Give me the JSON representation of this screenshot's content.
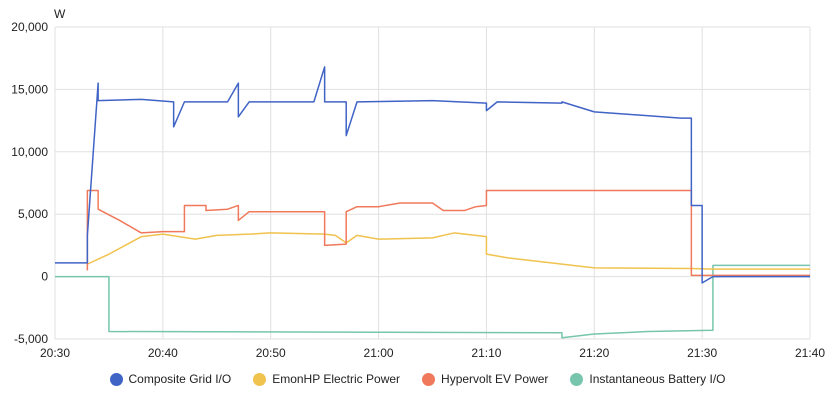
{
  "chart_data": {
    "type": "line",
    "y_label": "W",
    "xlim": [
      "20:30",
      "21:40"
    ],
    "xticks": [
      "20:30",
      "20:40",
      "20:50",
      "21:00",
      "21:10",
      "21:20",
      "21:30",
      "21:40"
    ],
    "ylim": [
      -5000,
      20000
    ],
    "yticks": [
      {
        "value": -5000,
        "label": "-5,000"
      },
      0,
      {
        "value": 5000,
        "label": "5,000"
      },
      {
        "value": 10000,
        "label": "10,000"
      },
      {
        "value": 15000,
        "label": "15,000"
      },
      {
        "value": 20000,
        "label": "20,000"
      }
    ],
    "grid": true,
    "series": [
      {
        "name": "Composite Grid I/O",
        "color": "#4063c6",
        "x": [
          "20:30",
          "20:33",
          "20:33",
          "20:34",
          "20:34",
          "20:38",
          "20:41",
          "20:41",
          "20:42",
          "20:46",
          "20:47",
          "20:47",
          "20:48",
          "20:54",
          "20:55",
          "20:55",
          "20:57",
          "20:57",
          "20:58",
          "21:05",
          "21:10",
          "21:10",
          "21:11",
          "21:17",
          "21:17",
          "21:20",
          "21:28",
          "21:29",
          "21:29",
          "21:30",
          "21:30",
          "21:31",
          "21:40"
        ],
        "values": [
          1100,
          1100,
          3300,
          15500,
          14100,
          14200,
          14000,
          12000,
          14000,
          14000,
          15500,
          12800,
          14000,
          14000,
          16800,
          14000,
          14000,
          11300,
          14000,
          14100,
          13900,
          13300,
          14000,
          13900,
          14000,
          13200,
          12700,
          12700,
          5700,
          5700,
          -500,
          0,
          0
        ]
      },
      {
        "name": "EmonHP Electric Power",
        "color": "#f0c24e",
        "x": [
          "20:33",
          "20:35",
          "20:38",
          "20:40",
          "20:43",
          "20:45",
          "20:48",
          "20:50",
          "20:55",
          "20:56",
          "20:57",
          "20:58",
          "21:00",
          "21:05",
          "21:07",
          "21:09",
          "21:10",
          "21:10",
          "21:12",
          "21:15",
          "21:20",
          "21:29",
          "21:31",
          "21:40"
        ],
        "values": [
          1000,
          1800,
          3200,
          3400,
          3000,
          3300,
          3400,
          3500,
          3400,
          3300,
          2700,
          3300,
          3000,
          3100,
          3500,
          3300,
          3200,
          1800,
          1500,
          1200,
          700,
          650,
          600,
          600
        ]
      },
      {
        "name": "Hypervolt EV Power",
        "color": "#f0795b",
        "x": [
          "20:33",
          "20:33",
          "20:34",
          "20:34",
          "20:36",
          "20:38",
          "20:40",
          "20:42",
          "20:42",
          "20:44",
          "20:44",
          "20:46",
          "20:47",
          "20:47",
          "20:48",
          "20:55",
          "20:55",
          "20:57",
          "20:57",
          "20:58",
          "21:00",
          "21:02",
          "21:05",
          "21:06",
          "21:08",
          "21:09",
          "21:10",
          "21:10",
          "21:29",
          "21:29",
          "21:40"
        ],
        "values": [
          500,
          6900,
          6900,
          5400,
          4500,
          3500,
          3600,
          3600,
          5700,
          5700,
          5300,
          5400,
          5700,
          4500,
          5200,
          5200,
          2500,
          2600,
          5200,
          5600,
          5600,
          5900,
          5900,
          5300,
          5300,
          5600,
          5700,
          6900,
          6900,
          100,
          100
        ]
      },
      {
        "name": "Instantaneous Battery I/O",
        "color": "#76c5ac",
        "x": [
          "20:30",
          "20:35",
          "20:35",
          "21:17",
          "21:17",
          "21:20",
          "21:25",
          "21:31",
          "21:31",
          "21:40"
        ],
        "values": [
          0,
          0,
          -4400,
          -4500,
          -4900,
          -4600,
          -4400,
          -4300,
          900,
          900
        ]
      }
    ]
  }
}
